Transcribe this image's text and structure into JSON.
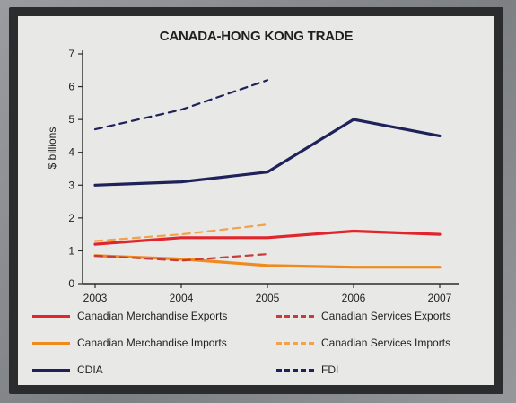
{
  "chart_data": {
    "type": "line",
    "title": "CANADA-HONG KONG TRADE",
    "ylabel": "$ billions",
    "xlabel": "",
    "x": [
      "2003",
      "2004",
      "2005",
      "2006",
      "2007"
    ],
    "ylim": [
      0,
      7
    ],
    "yticks": [
      0,
      1,
      2,
      3,
      4,
      5,
      6,
      7
    ],
    "grid": false,
    "legend_position": "bottom",
    "series": [
      {
        "name": "Canadian Merchandise Exports",
        "values": [
          1.2,
          1.4,
          1.4,
          1.6,
          1.5
        ],
        "color": "#e0262c",
        "dash": false
      },
      {
        "name": "Canadian Merchandise Imports",
        "values": [
          0.85,
          0.75,
          0.55,
          0.5,
          0.5
        ],
        "color": "#f08a1c",
        "dash": false
      },
      {
        "name": "CDIA",
        "values": [
          3.0,
          3.1,
          3.4,
          5.0,
          4.5
        ],
        "color": "#1f2259",
        "dash": false
      },
      {
        "name": "Canadian Services Exports",
        "values": [
          0.85,
          0.7,
          0.9,
          null,
          null
        ],
        "color": "#c93a3a",
        "dash": true
      },
      {
        "name": "Canadian Services Imports",
        "values": [
          1.3,
          1.5,
          1.8,
          null,
          null
        ],
        "color": "#f2a24a",
        "dash": true
      },
      {
        "name": "FDI",
        "values": [
          4.7,
          5.3,
          6.2,
          null,
          null
        ],
        "color": "#1f2259",
        "dash": true
      }
    ]
  }
}
